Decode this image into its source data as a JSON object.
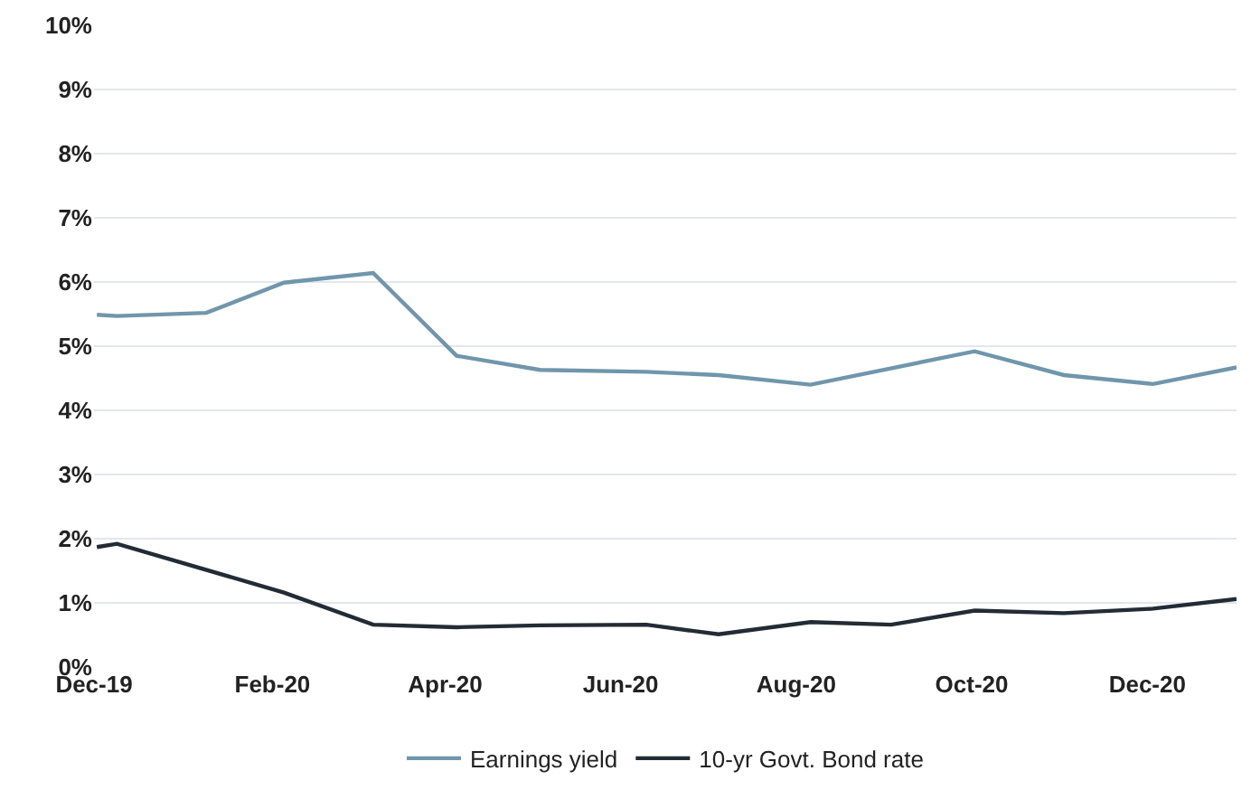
{
  "chart_data": {
    "type": "line",
    "series": [
      {
        "name": "Earnings yield",
        "color": "#7096ab",
        "x": [
          "2019-12-02",
          "2019-12-09",
          "2020-01-09",
          "2020-02-05",
          "2020-03-07",
          "2020-04-05",
          "2020-05-04",
          "2020-06-10",
          "2020-07-05",
          "2020-08-06",
          "2020-10-02",
          "2020-11-02",
          "2020-12-03",
          "2021-01-01"
        ],
        "values": [
          5.49,
          5.47,
          5.52,
          5.99,
          6.14,
          4.85,
          4.63,
          4.6,
          4.55,
          4.4,
          4.92,
          4.55,
          4.41,
          4.67
        ]
      },
      {
        "name": "10-yr Govt. Bond rate",
        "color": "#232b35",
        "x": [
          "2019-12-02",
          "2019-12-09",
          "2020-02-05",
          "2020-03-07",
          "2020-04-05",
          "2020-05-04",
          "2020-06-10",
          "2020-07-05",
          "2020-08-06",
          "2020-09-03",
          "2020-10-02",
          "2020-11-02",
          "2020-12-03",
          "2021-01-01"
        ],
        "values": [
          1.87,
          1.92,
          1.16,
          0.66,
          0.62,
          0.65,
          0.66,
          0.51,
          0.7,
          0.66,
          0.88,
          0.84,
          0.91,
          1.06
        ]
      }
    ],
    "xlim": [
      "2019-12-01",
      "2021-01-01"
    ],
    "xticks": [
      {
        "value": "2019-12-01",
        "label": "Dec-19"
      },
      {
        "value": "2020-02-01",
        "label": "Feb-20"
      },
      {
        "value": "2020-04-01",
        "label": "Apr-20"
      },
      {
        "value": "2020-06-01",
        "label": "Jun-20"
      },
      {
        "value": "2020-08-01",
        "label": "Aug-20"
      },
      {
        "value": "2020-10-01",
        "label": "Oct-20"
      },
      {
        "value": "2020-12-01",
        "label": "Dec-20"
      }
    ],
    "ylim": [
      0,
      10
    ],
    "yticks": [
      {
        "value": 0,
        "label": "0%"
      },
      {
        "value": 1,
        "label": "1%"
      },
      {
        "value": 2,
        "label": "2%"
      },
      {
        "value": 3,
        "label": "3%"
      },
      {
        "value": 4,
        "label": "4%"
      },
      {
        "value": 5,
        "label": "5%"
      },
      {
        "value": 6,
        "label": "6%"
      },
      {
        "value": 7,
        "label": "7%"
      },
      {
        "value": 8,
        "label": "8%"
      },
      {
        "value": 9,
        "label": "9%"
      },
      {
        "value": 10,
        "label": "10%"
      }
    ],
    "grid": "y",
    "legend": "bottom",
    "marker": "none",
    "line_style": "solid"
  }
}
